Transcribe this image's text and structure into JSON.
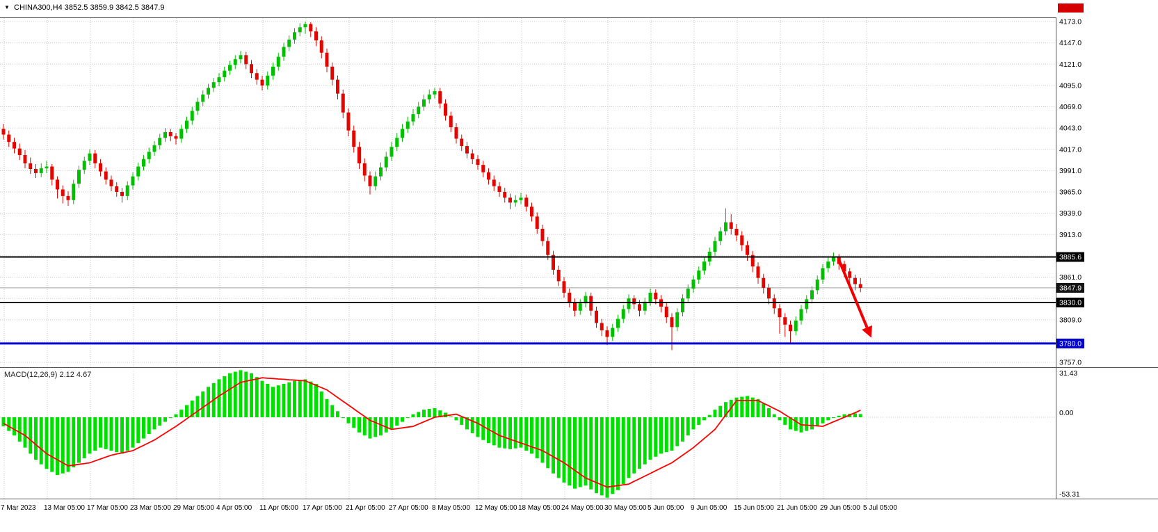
{
  "top_bar": {
    "symbol_title": "CHINA300,H4  3852.5 3859.9 3842.5 3847.9"
  },
  "macd_panel": {
    "label": "MACD(12,26,9) 2.12 4.67",
    "scale_labels": [
      "31.43",
      "0.00",
      "-53.31"
    ]
  },
  "colors": {
    "up": "#00c000",
    "down": "#e10600",
    "macd_hist": "#00e000",
    "signal": "#ff0000",
    "grid": "#c6c6c6",
    "bid_line": "#a0a0a0",
    "frame": "#555555",
    "badge_red": "#d40000"
  },
  "chart_data": {
    "type": "candlestick",
    "symbol": "CHINA300",
    "timeframe": "H4",
    "last_ohlc": {
      "open": 3852.5,
      "high": 3859.9,
      "low": 3842.5,
      "close": 3847.9
    },
    "price_axis": {
      "min": 3757.0,
      "max": 4173.0,
      "grid_prices": [
        4173,
        4147,
        4121,
        4095,
        4069,
        4043,
        4017,
        3991,
        3965,
        3939,
        3913,
        3887,
        3861,
        3835,
        3809,
        3783,
        3757
      ],
      "visible_ticks": [
        [
          "4173.0",
          4173
        ],
        [
          "4147.0",
          4147
        ],
        [
          "4121.0",
          4121
        ],
        [
          "4095.0",
          4095
        ],
        [
          "4069.0",
          4069
        ],
        [
          "4043.0",
          4043
        ],
        [
          "4017.0",
          4017
        ],
        [
          "3991.0",
          3991
        ],
        [
          "3965.0",
          3965
        ],
        [
          "3939.0",
          3939
        ],
        [
          "3913.0",
          3913
        ],
        [
          "3861.0",
          3861
        ],
        [
          "3809.0",
          3809
        ],
        [
          "3757.0",
          3757
        ]
      ]
    },
    "price_tags": [
      {
        "label": "3885.6",
        "value": 3885.6,
        "bg": "#000000"
      },
      {
        "label": "3847.9",
        "value": 3847.9,
        "bg": "#141414"
      },
      {
        "label": "3830.0",
        "value": 3830.0,
        "bg": "#000000"
      },
      {
        "label": "3780.0",
        "value": 3780.0,
        "bg": "#0000cd"
      }
    ],
    "hlines": [
      {
        "value": 3885.6,
        "color": "#000000",
        "width": 2
      },
      {
        "value": 3830.0,
        "color": "#000000",
        "width": 2
      },
      {
        "value": 3780.0,
        "color": "#0000d0",
        "width": 3
      }
    ],
    "arrow": {
      "from_index": 155,
      "from_price": 3882,
      "to_index": 161,
      "to_price": 3787,
      "color": "#f00000"
    },
    "x_labels": [
      "7 Mar 2023",
      "13 Mar 05:00",
      "17 Mar 05:00",
      "23 Mar 05:00",
      "29 Mar 05:00",
      "4 Apr 05:00",
      "11 Apr 05:00",
      "17 Apr 05:00",
      "21 Apr 05:00",
      "27 Apr 05:00",
      "8 May 05:00",
      "12 May 05:00",
      "18 May 05:00",
      "24 May 05:00",
      "30 May 05:00",
      "5 Jun 05:00",
      "9 Jun 05:00",
      "15 Jun 05:00",
      "21 Jun 05:00",
      "29 Jun 05:00",
      "5 Jul 05:00"
    ],
    "candles": [
      [
        4042,
        4048,
        4029,
        4035
      ],
      [
        4035,
        4040,
        4020,
        4026
      ],
      [
        4026,
        4031,
        4012,
        4018
      ],
      [
        4018,
        4024,
        4004,
        4010
      ],
      [
        4010,
        4016,
        3994,
        4000
      ],
      [
        4000,
        4007,
        3987,
        3993
      ],
      [
        3993,
        3999,
        3982,
        3988
      ],
      [
        3988,
        4000,
        3983,
        3994
      ],
      [
        3994,
        4003,
        3988,
        3996
      ],
      [
        3996,
        3999,
        3973,
        3980
      ],
      [
        3980,
        3984,
        3957,
        3968
      ],
      [
        3968,
        3973,
        3951,
        3960
      ],
      [
        3960,
        3966,
        3948,
        3955
      ],
      [
        3955,
        3980,
        3950,
        3975
      ],
      [
        3975,
        3997,
        3970,
        3992
      ],
      [
        3992,
        4008,
        3987,
        4003
      ],
      [
        4003,
        4017,
        3998,
        4012
      ],
      [
        4012,
        4016,
        3994,
        4000
      ],
      [
        4000,
        4005,
        3984,
        3990
      ],
      [
        3990,
        3995,
        3974,
        3980
      ],
      [
        3980,
        3985,
        3966,
        3972
      ],
      [
        3972,
        3977,
        3959,
        3965
      ],
      [
        3965,
        3970,
        3952,
        3960
      ],
      [
        3960,
        3978,
        3955,
        3973
      ],
      [
        3973,
        3989,
        3968,
        3984
      ],
      [
        3984,
        4001,
        3979,
        3996
      ],
      [
        3996,
        4010,
        3991,
        4005
      ],
      [
        4005,
        4019,
        4000,
        4014
      ],
      [
        4014,
        4027,
        4009,
        4022
      ],
      [
        4022,
        4036,
        4017,
        4031
      ],
      [
        4031,
        4043,
        4026,
        4038
      ],
      [
        4038,
        4042,
        4027,
        4033
      ],
      [
        4033,
        4037,
        4023,
        4030
      ],
      [
        4030,
        4047,
        4025,
        4042
      ],
      [
        4042,
        4057,
        4037,
        4052
      ],
      [
        4052,
        4069,
        4047,
        4064
      ],
      [
        4064,
        4080,
        4059,
        4075
      ],
      [
        4075,
        4089,
        4070,
        4084
      ],
      [
        4084,
        4097,
        4079,
        4092
      ],
      [
        4092,
        4104,
        4087,
        4099
      ],
      [
        4099,
        4110,
        4094,
        4105
      ],
      [
        4105,
        4118,
        4100,
        4113
      ],
      [
        4113,
        4125,
        4108,
        4120
      ],
      [
        4120,
        4132,
        4115,
        4127
      ],
      [
        4127,
        4137,
        4122,
        4132
      ],
      [
        4132,
        4136,
        4115,
        4121
      ],
      [
        4121,
        4126,
        4104,
        4110
      ],
      [
        4110,
        4115,
        4096,
        4102
      ],
      [
        4102,
        4107,
        4089,
        4095
      ],
      [
        4095,
        4112,
        4090,
        4107
      ],
      [
        4107,
        4123,
        4102,
        4118
      ],
      [
        4118,
        4135,
        4113,
        4130
      ],
      [
        4130,
        4147,
        4125,
        4142
      ],
      [
        4142,
        4156,
        4137,
        4151
      ],
      [
        4151,
        4165,
        4146,
        4160
      ],
      [
        4160,
        4171,
        4155,
        4166
      ],
      [
        4166,
        4173,
        4158,
        4170
      ],
      [
        4170,
        4172,
        4154,
        4161
      ],
      [
        4161,
        4166,
        4143,
        4150
      ],
      [
        4150,
        4155,
        4128,
        4135
      ],
      [
        4135,
        4140,
        4111,
        4118
      ],
      [
        4118,
        4123,
        4095,
        4102
      ],
      [
        4102,
        4107,
        4078,
        4085
      ],
      [
        4085,
        4090,
        4055,
        4062
      ],
      [
        4062,
        4067,
        4033,
        4040
      ],
      [
        4040,
        4046,
        4013,
        4020
      ],
      [
        4020,
        4026,
        3993,
        4000
      ],
      [
        4000,
        4006,
        3978,
        3985
      ],
      [
        3985,
        3990,
        3962,
        3972
      ],
      [
        3972,
        3990,
        3967,
        3984
      ],
      [
        3984,
        4001,
        3979,
        3995
      ],
      [
        3995,
        4014,
        3990,
        4008
      ],
      [
        4008,
        4026,
        4003,
        4020
      ],
      [
        4020,
        4037,
        4015,
        4031
      ],
      [
        4031,
        4048,
        4026,
        4042
      ],
      [
        4042,
        4057,
        4037,
        4051
      ],
      [
        4051,
        4066,
        4046,
        4060
      ],
      [
        4060,
        4075,
        4055,
        4069
      ],
      [
        4069,
        4084,
        4064,
        4078
      ],
      [
        4078,
        4090,
        4073,
        4084
      ],
      [
        4084,
        4092,
        4079,
        4088
      ],
      [
        4088,
        4092,
        4067,
        4073
      ],
      [
        4073,
        4078,
        4052,
        4058
      ],
      [
        4058,
        4063,
        4038,
        4044
      ],
      [
        4044,
        4049,
        4024,
        4030
      ],
      [
        4030,
        4035,
        4015,
        4021
      ],
      [
        4021,
        4026,
        4006,
        4012
      ],
      [
        4012,
        4017,
        3999,
        4005
      ],
      [
        4005,
        4010,
        3992,
        3998
      ],
      [
        3998,
        4003,
        3983,
        3989
      ],
      [
        3989,
        3994,
        3974,
        3980
      ],
      [
        3980,
        3985,
        3966,
        3972
      ],
      [
        3972,
        3977,
        3959,
        3965
      ],
      [
        3965,
        3970,
        3952,
        3958
      ],
      [
        3958,
        3963,
        3944,
        3952
      ],
      [
        3952,
        3961,
        3947,
        3955
      ],
      [
        3955,
        3964,
        3950,
        3958
      ],
      [
        3958,
        3962,
        3941,
        3947
      ],
      [
        3947,
        3952,
        3929,
        3935
      ],
      [
        3935,
        3940,
        3914,
        3920
      ],
      [
        3920,
        3925,
        3899,
        3905
      ],
      [
        3905,
        3910,
        3882,
        3888
      ],
      [
        3888,
        3893,
        3864,
        3870
      ],
      [
        3870,
        3875,
        3850,
        3856
      ],
      [
        3856,
        3861,
        3836,
        3842
      ],
      [
        3842,
        3847,
        3824,
        3830
      ],
      [
        3830,
        3835,
        3813,
        3820
      ],
      [
        3820,
        3834,
        3815,
        3829
      ],
      [
        3829,
        3843,
        3824,
        3838
      ],
      [
        3838,
        3842,
        3814,
        3820
      ],
      [
        3820,
        3825,
        3799,
        3805
      ],
      [
        3805,
        3810,
        3789,
        3796
      ],
      [
        3796,
        3801,
        3778,
        3788
      ],
      [
        3788,
        3804,
        3783,
        3799
      ],
      [
        3799,
        3815,
        3794,
        3810
      ],
      [
        3810,
        3827,
        3805,
        3822
      ],
      [
        3822,
        3840,
        3817,
        3835
      ],
      [
        3835,
        3839,
        3822,
        3828
      ],
      [
        3828,
        3833,
        3813,
        3820
      ],
      [
        3820,
        3836,
        3815,
        3831
      ],
      [
        3831,
        3847,
        3826,
        3842
      ],
      [
        3842,
        3846,
        3828,
        3834
      ],
      [
        3834,
        3839,
        3818,
        3825
      ],
      [
        3825,
        3830,
        3805,
        3812
      ],
      [
        3812,
        3817,
        3772,
        3800
      ],
      [
        3800,
        3823,
        3795,
        3818
      ],
      [
        3818,
        3840,
        3813,
        3835
      ],
      [
        3835,
        3852,
        3830,
        3847
      ],
      [
        3847,
        3863,
        3842,
        3858
      ],
      [
        3858,
        3874,
        3853,
        3869
      ],
      [
        3869,
        3885,
        3864,
        3880
      ],
      [
        3880,
        3897,
        3875,
        3892
      ],
      [
        3892,
        3910,
        3887,
        3905
      ],
      [
        3905,
        3922,
        3900,
        3917
      ],
      [
        3917,
        3945,
        3912,
        3928
      ],
      [
        3928,
        3938,
        3913,
        3920
      ],
      [
        3920,
        3926,
        3905,
        3912
      ],
      [
        3912,
        3917,
        3893,
        3900
      ],
      [
        3900,
        3905,
        3881,
        3888
      ],
      [
        3888,
        3893,
        3867,
        3874
      ],
      [
        3874,
        3879,
        3853,
        3860
      ],
      [
        3860,
        3865,
        3841,
        3848
      ],
      [
        3848,
        3853,
        3828,
        3835
      ],
      [
        3835,
        3840,
        3816,
        3823
      ],
      [
        3823,
        3828,
        3792,
        3812
      ],
      [
        3812,
        3817,
        3788,
        3803
      ],
      [
        3803,
        3808,
        3781,
        3795
      ],
      [
        3795,
        3813,
        3790,
        3808
      ],
      [
        3808,
        3827,
        3803,
        3822
      ],
      [
        3822,
        3839,
        3817,
        3834
      ],
      [
        3834,
        3850,
        3829,
        3845
      ],
      [
        3845,
        3863,
        3840,
        3858
      ],
      [
        3858,
        3877,
        3853,
        3872
      ],
      [
        3872,
        3886,
        3867,
        3880
      ],
      [
        3880,
        3891,
        3875,
        3885
      ],
      [
        3885,
        3889,
        3870,
        3877
      ],
      [
        3877,
        3881,
        3861,
        3868
      ],
      [
        3868,
        3872,
        3853,
        3860
      ],
      [
        3860,
        3864,
        3845,
        3852.5
      ],
      [
        3852.5,
        3859.9,
        3842.5,
        3847.9
      ]
    ],
    "macd": {
      "params": "12,26,9",
      "current_macd": 2.12,
      "current_signal": 4.67,
      "scale": {
        "max": 31.43,
        "zero": 0.0,
        "min": -53.31
      },
      "histogram": [
        -6,
        -9,
        -12,
        -16,
        -20,
        -24,
        -28,
        -31,
        -34,
        -36,
        -38,
        -37,
        -36,
        -33,
        -30,
        -27,
        -24,
        -22,
        -20,
        -21,
        -22,
        -23,
        -24,
        -22,
        -20,
        -17,
        -14,
        -11,
        -8,
        -5.5,
        -3,
        -0.5,
        2,
        5,
        8,
        11,
        14,
        17,
        20,
        22.5,
        25,
        27,
        29,
        30,
        31,
        30,
        29,
        26.5,
        24,
        22,
        20,
        21,
        22,
        23,
        24,
        24.5,
        25,
        23.5,
        22,
        17,
        12,
        8,
        4,
        0,
        -4,
        -7,
        -10,
        -12,
        -14,
        -13,
        -12,
        -10,
        -8,
        -5.5,
        -3,
        -0.5,
        2,
        3.5,
        5,
        5.5,
        6,
        4.5,
        3,
        0.5,
        -2,
        -5,
        -8,
        -10.5,
        -13,
        -15,
        -17,
        -18.5,
        -20,
        -20.5,
        -21,
        -20.5,
        -20,
        -22,
        -24,
        -27,
        -30,
        -33.5,
        -37,
        -40,
        -43,
        -45,
        -47,
        -46,
        -45,
        -47.5,
        -50,
        -51.5,
        -53,
        -50.5,
        -48,
        -44,
        -40,
        -37,
        -34,
        -31,
        -28,
        -26,
        -24,
        -23,
        -22,
        -19,
        -16,
        -12,
        -8,
        -5,
        -2,
        1.5,
        5,
        7.5,
        10,
        11.5,
        13,
        13.5,
        14,
        13,
        12,
        9,
        6,
        2,
        -2,
        -5,
        -8,
        -9,
        -10,
        -9,
        -8,
        -6,
        -4,
        -2,
        0,
        1,
        2,
        2.3,
        2.5,
        2.12
      ],
      "signal": [
        -4,
        -6,
        -8,
        -10,
        -12,
        -15,
        -18,
        -21,
        -24,
        -26,
        -28,
        -30,
        -32,
        -31.5,
        -31,
        -30.5,
        -30,
        -28.7,
        -27.5,
        -26.2,
        -25,
        -24.2,
        -23.5,
        -22.7,
        -22,
        -20.2,
        -18.5,
        -16.7,
        -15,
        -12.7,
        -10.5,
        -8.2,
        -6,
        -3.5,
        -1,
        1.5,
        4,
        6.5,
        9,
        11.5,
        14,
        16.2,
        18.5,
        20.7,
        23,
        23.7,
        24.5,
        25.2,
        26,
        25.7,
        25.5,
        25.2,
        25,
        24.7,
        24.5,
        24.2,
        24,
        22.5,
        21,
        19.5,
        18,
        15.5,
        13,
        10.5,
        8,
        5.5,
        3,
        0.5,
        -2,
        -3.5,
        -5,
        -6.5,
        -8,
        -7.5,
        -7,
        -6.5,
        -6,
        -4.5,
        -3,
        -1.5,
        0,
        0.5,
        1,
        1.5,
        2,
        0.5,
        -1,
        -2.5,
        -4,
        -6,
        -8,
        -10,
        -12,
        -13.2,
        -14.5,
        -15.7,
        -17,
        -18.2,
        -19.5,
        -20.7,
        -22,
        -24,
        -26,
        -28,
        -30,
        -32.5,
        -35,
        -37.5,
        -40,
        -41.5,
        -43,
        -44.5,
        -46,
        -45.5,
        -45,
        -44.5,
        -44,
        -42.2,
        -40.5,
        -38.7,
        -37,
        -35.2,
        -33.5,
        -31.7,
        -30,
        -27.5,
        -25,
        -22.5,
        -20,
        -17,
        -14,
        -11,
        -8,
        -3.2,
        1.5,
        6.2,
        11,
        11,
        11,
        11,
        11,
        9.2,
        7.5,
        5.7,
        4,
        1.7,
        -0.5,
        -2.7,
        -5,
        -5.2,
        -5.5,
        -5.7,
        -6,
        -4.5,
        -3,
        -1.5,
        0,
        1.5,
        3,
        4.67
      ]
    }
  }
}
